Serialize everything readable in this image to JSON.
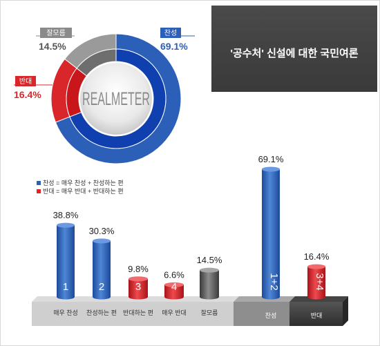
{
  "title": "'공수처' 신설에 대한 국민여론",
  "logo": "REALMETER",
  "colors": {
    "blue": "#2b5fb8",
    "red": "#d9262b",
    "gray": "#8a8a8a",
    "dark": "#3d3d3d"
  },
  "legend": {
    "support": "찬성 = 매우 찬성 + 찬성하는 편",
    "oppose": "반대 = 매우 반대 + 반대하는 편"
  },
  "chart_data": [
    {
      "type": "pie",
      "categories": [
        "찬성",
        "반대",
        "잘모름"
      ],
      "values": [
        69.1,
        16.4,
        14.5
      ],
      "value_labels": [
        "69.1%",
        "16.4%",
        "14.5%"
      ]
    },
    {
      "type": "bar",
      "categories": [
        "매우 찬성",
        "찬성하는 편",
        "반대하는 편",
        "매우 반대",
        "잘모름",
        "찬성",
        "반대"
      ],
      "values": [
        38.8,
        30.3,
        9.8,
        6.6,
        14.5,
        69.1,
        16.4
      ],
      "value_labels": [
        "38.8%",
        "30.3%",
        "9.8%",
        "6.6%",
        "14.5%",
        "69.1%",
        "16.4%"
      ],
      "bar_marks": [
        "1",
        "2",
        "3",
        "4",
        "",
        "1+2",
        "3+4"
      ]
    }
  ]
}
